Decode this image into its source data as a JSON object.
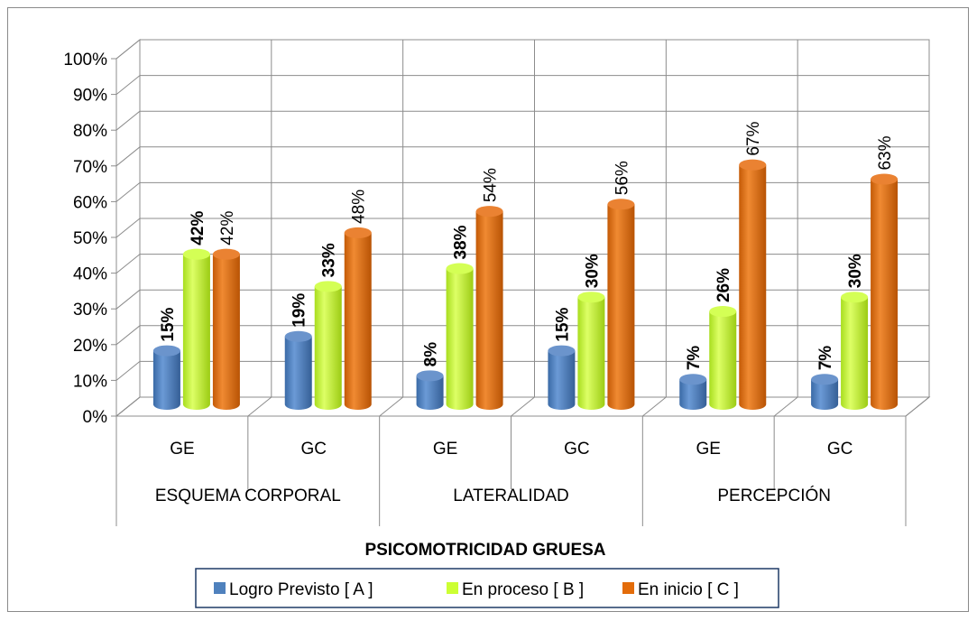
{
  "chart_data": {
    "type": "bar",
    "xlabel": "PSICOMOTRICIDAD GRUESA",
    "ylabel": "",
    "ylim": [
      0,
      100
    ],
    "y_ticks": [
      "0%",
      "10%",
      "20%",
      "30%",
      "40%",
      "50%",
      "60%",
      "70%",
      "80%",
      "90%",
      "100%"
    ],
    "groups": [
      "ESQUEMA CORPORAL",
      "LATERALIDAD",
      "PERCEPCIÓN"
    ],
    "categories": [
      "GE",
      "GC",
      "GE",
      "GC",
      "GE",
      "GC"
    ],
    "series": [
      {
        "name": "Logro Previsto  [ A ]",
        "values": [
          15,
          19,
          8,
          15,
          7,
          7
        ],
        "labels": [
          "15%",
          "19%",
          "8%",
          "15%",
          "7%",
          "7%"
        ],
        "color": "#4f81bd"
      },
      {
        "name": "En proceso [ B ]",
        "values": [
          42,
          33,
          38,
          30,
          26,
          30
        ],
        "labels": [
          "42%",
          "33%",
          "38%",
          "30%",
          "26%",
          "30%"
        ],
        "color": "#ccff33"
      },
      {
        "name": "En inicio [ C ]",
        "values": [
          42,
          48,
          54,
          56,
          67,
          63
        ],
        "labels": [
          "42%",
          "48%",
          "54%",
          "56%",
          "67%",
          "63%"
        ],
        "color": "#e36c0a"
      }
    ],
    "grid": true,
    "style": "3d-cylinder",
    "legend_position": "bottom"
  }
}
